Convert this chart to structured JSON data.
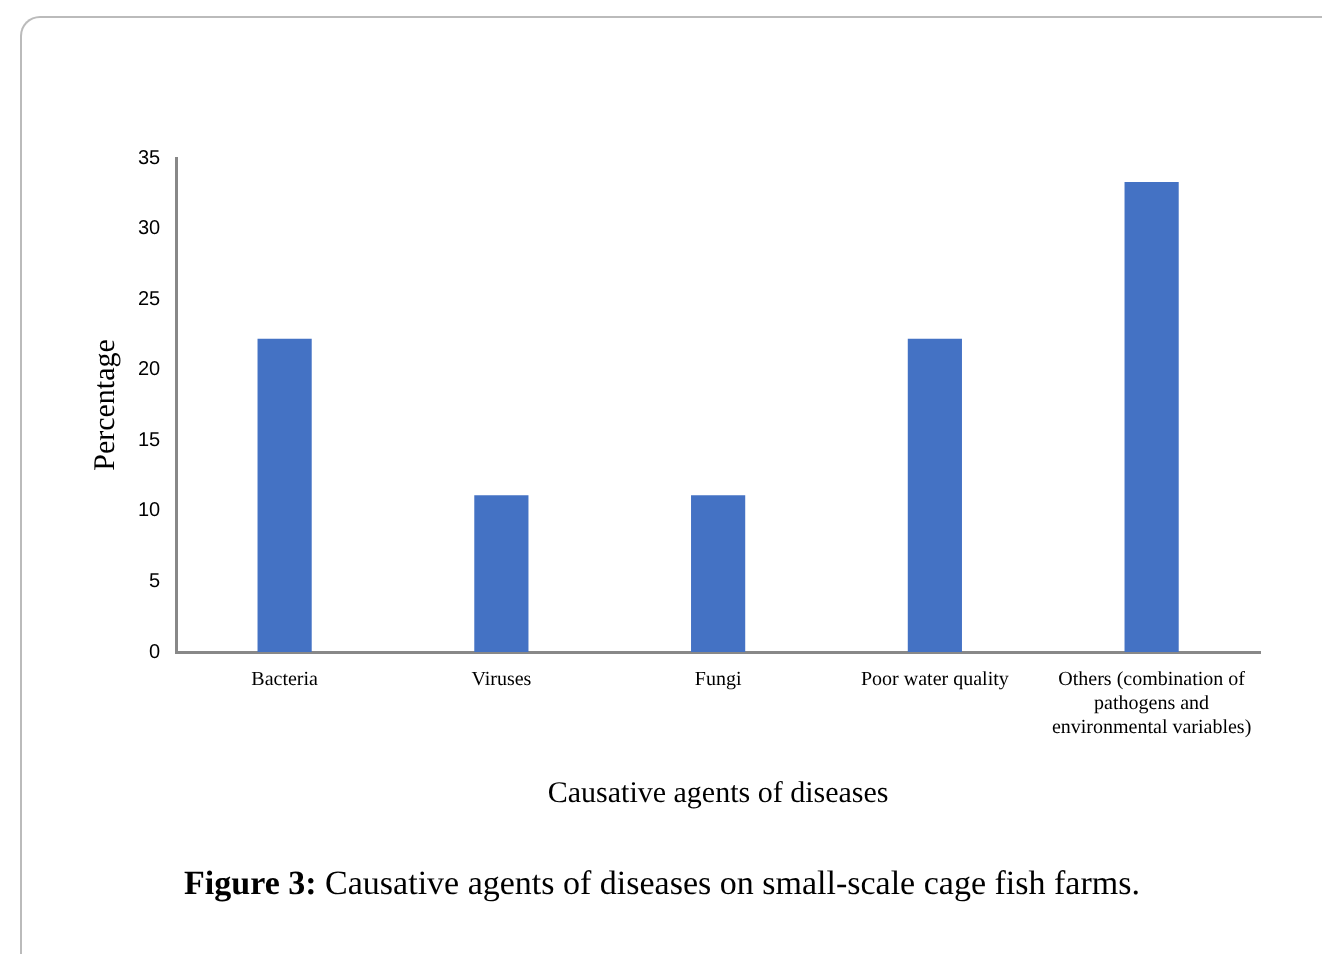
{
  "chart_data": {
    "type": "bar",
    "xlabel": "Causative agents of diseases",
    "ylabel": "Percentage",
    "categories": [
      "Bacteria",
      "Viruses",
      "Fungi",
      "Poor water quality",
      "Others (combination of pathogens and environmental variables)"
    ],
    "values": [
      22.2,
      11.1,
      11.1,
      22.2,
      33.3
    ],
    "color": "#4472c4",
    "ylim": [
      0,
      35
    ],
    "yticks": [
      0,
      5,
      10,
      15,
      20,
      25,
      30,
      35
    ],
    "grid": false,
    "legend": false,
    "annotations": [
      "Figure 3: Causative agents of diseases on small-scale cage fish farms."
    ]
  }
}
